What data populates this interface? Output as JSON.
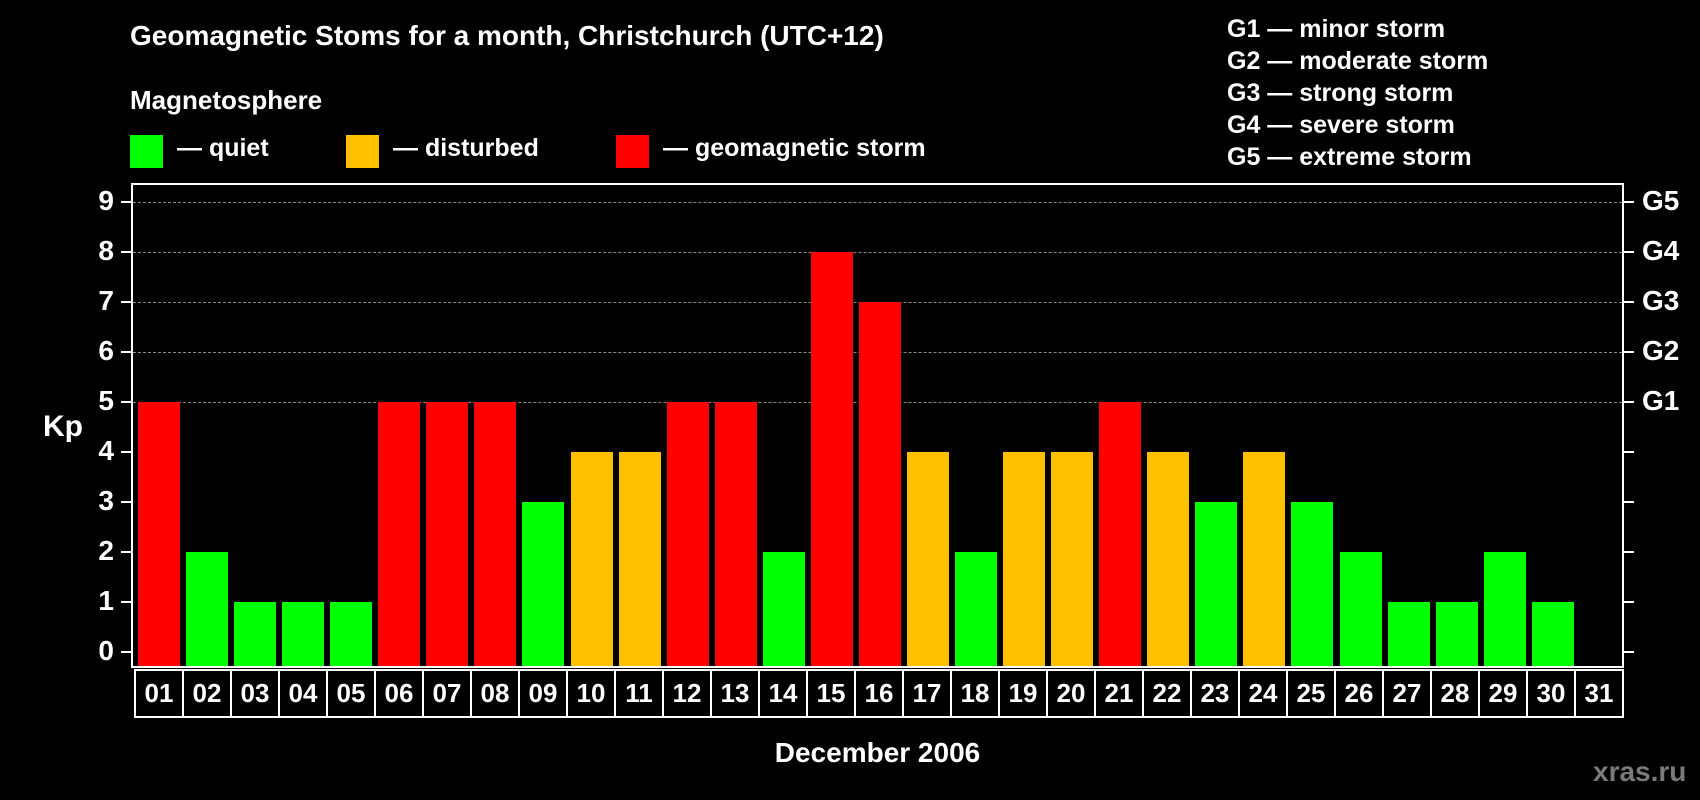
{
  "title": "Geomagnetic Stoms for a month, Christchurch (UTC+12)",
  "legend": {
    "heading": "Magnetosphere",
    "items": [
      {
        "label": "— quiet",
        "color": "#00ff00"
      },
      {
        "label": "— disturbed",
        "color": "#ffc000"
      },
      {
        "label": "— geomagnetic storm",
        "color": "#ff0000"
      }
    ]
  },
  "g_scale": [
    "G1 — minor storm",
    "G2 — moderate storm",
    "G3 — strong storm",
    "G4 — severe storm",
    "G5 — extreme storm"
  ],
  "watermark": "xras.ru",
  "colors": {
    "quiet": "#00ff00",
    "disturbed": "#ffc000",
    "storm": "#ff0000",
    "grid": "#8a8a8a"
  },
  "chart_data": {
    "type": "bar",
    "title": "Geomagnetic Stoms for a month, Christchurch (UTC+12)",
    "xlabel": "December 2006",
    "ylabel": "Kp",
    "ylim": [
      0,
      9
    ],
    "yticks": [
      0,
      1,
      2,
      3,
      4,
      5,
      6,
      7,
      8,
      9
    ],
    "right_axis_labels": [
      {
        "kp": 5,
        "label": "G1"
      },
      {
        "kp": 6,
        "label": "G2"
      },
      {
        "kp": 7,
        "label": "G3"
      },
      {
        "kp": 8,
        "label": "G4"
      },
      {
        "kp": 9,
        "label": "G5"
      }
    ],
    "grid": "dashed horizontal at Kp 5-9",
    "categories": [
      "01",
      "02",
      "03",
      "04",
      "05",
      "06",
      "07",
      "08",
      "09",
      "10",
      "11",
      "12",
      "13",
      "14",
      "15",
      "16",
      "17",
      "18",
      "19",
      "20",
      "21",
      "22",
      "23",
      "24",
      "25",
      "26",
      "27",
      "28",
      "29",
      "30",
      "31"
    ],
    "values": [
      5,
      2,
      1,
      1,
      1,
      5,
      5,
      5,
      3,
      4,
      4,
      5,
      5,
      2,
      8,
      7,
      4,
      2,
      4,
      4,
      5,
      4,
      3,
      4,
      3,
      2,
      1,
      1,
      2,
      1,
      null
    ],
    "status": [
      "storm",
      "quiet",
      "quiet",
      "quiet",
      "quiet",
      "storm",
      "storm",
      "storm",
      "quiet",
      "disturbed",
      "disturbed",
      "storm",
      "storm",
      "quiet",
      "storm",
      "storm",
      "disturbed",
      "quiet",
      "disturbed",
      "disturbed",
      "storm",
      "disturbed",
      "quiet",
      "disturbed",
      "quiet",
      "quiet",
      "quiet",
      "quiet",
      "quiet",
      "quiet",
      null
    ]
  }
}
